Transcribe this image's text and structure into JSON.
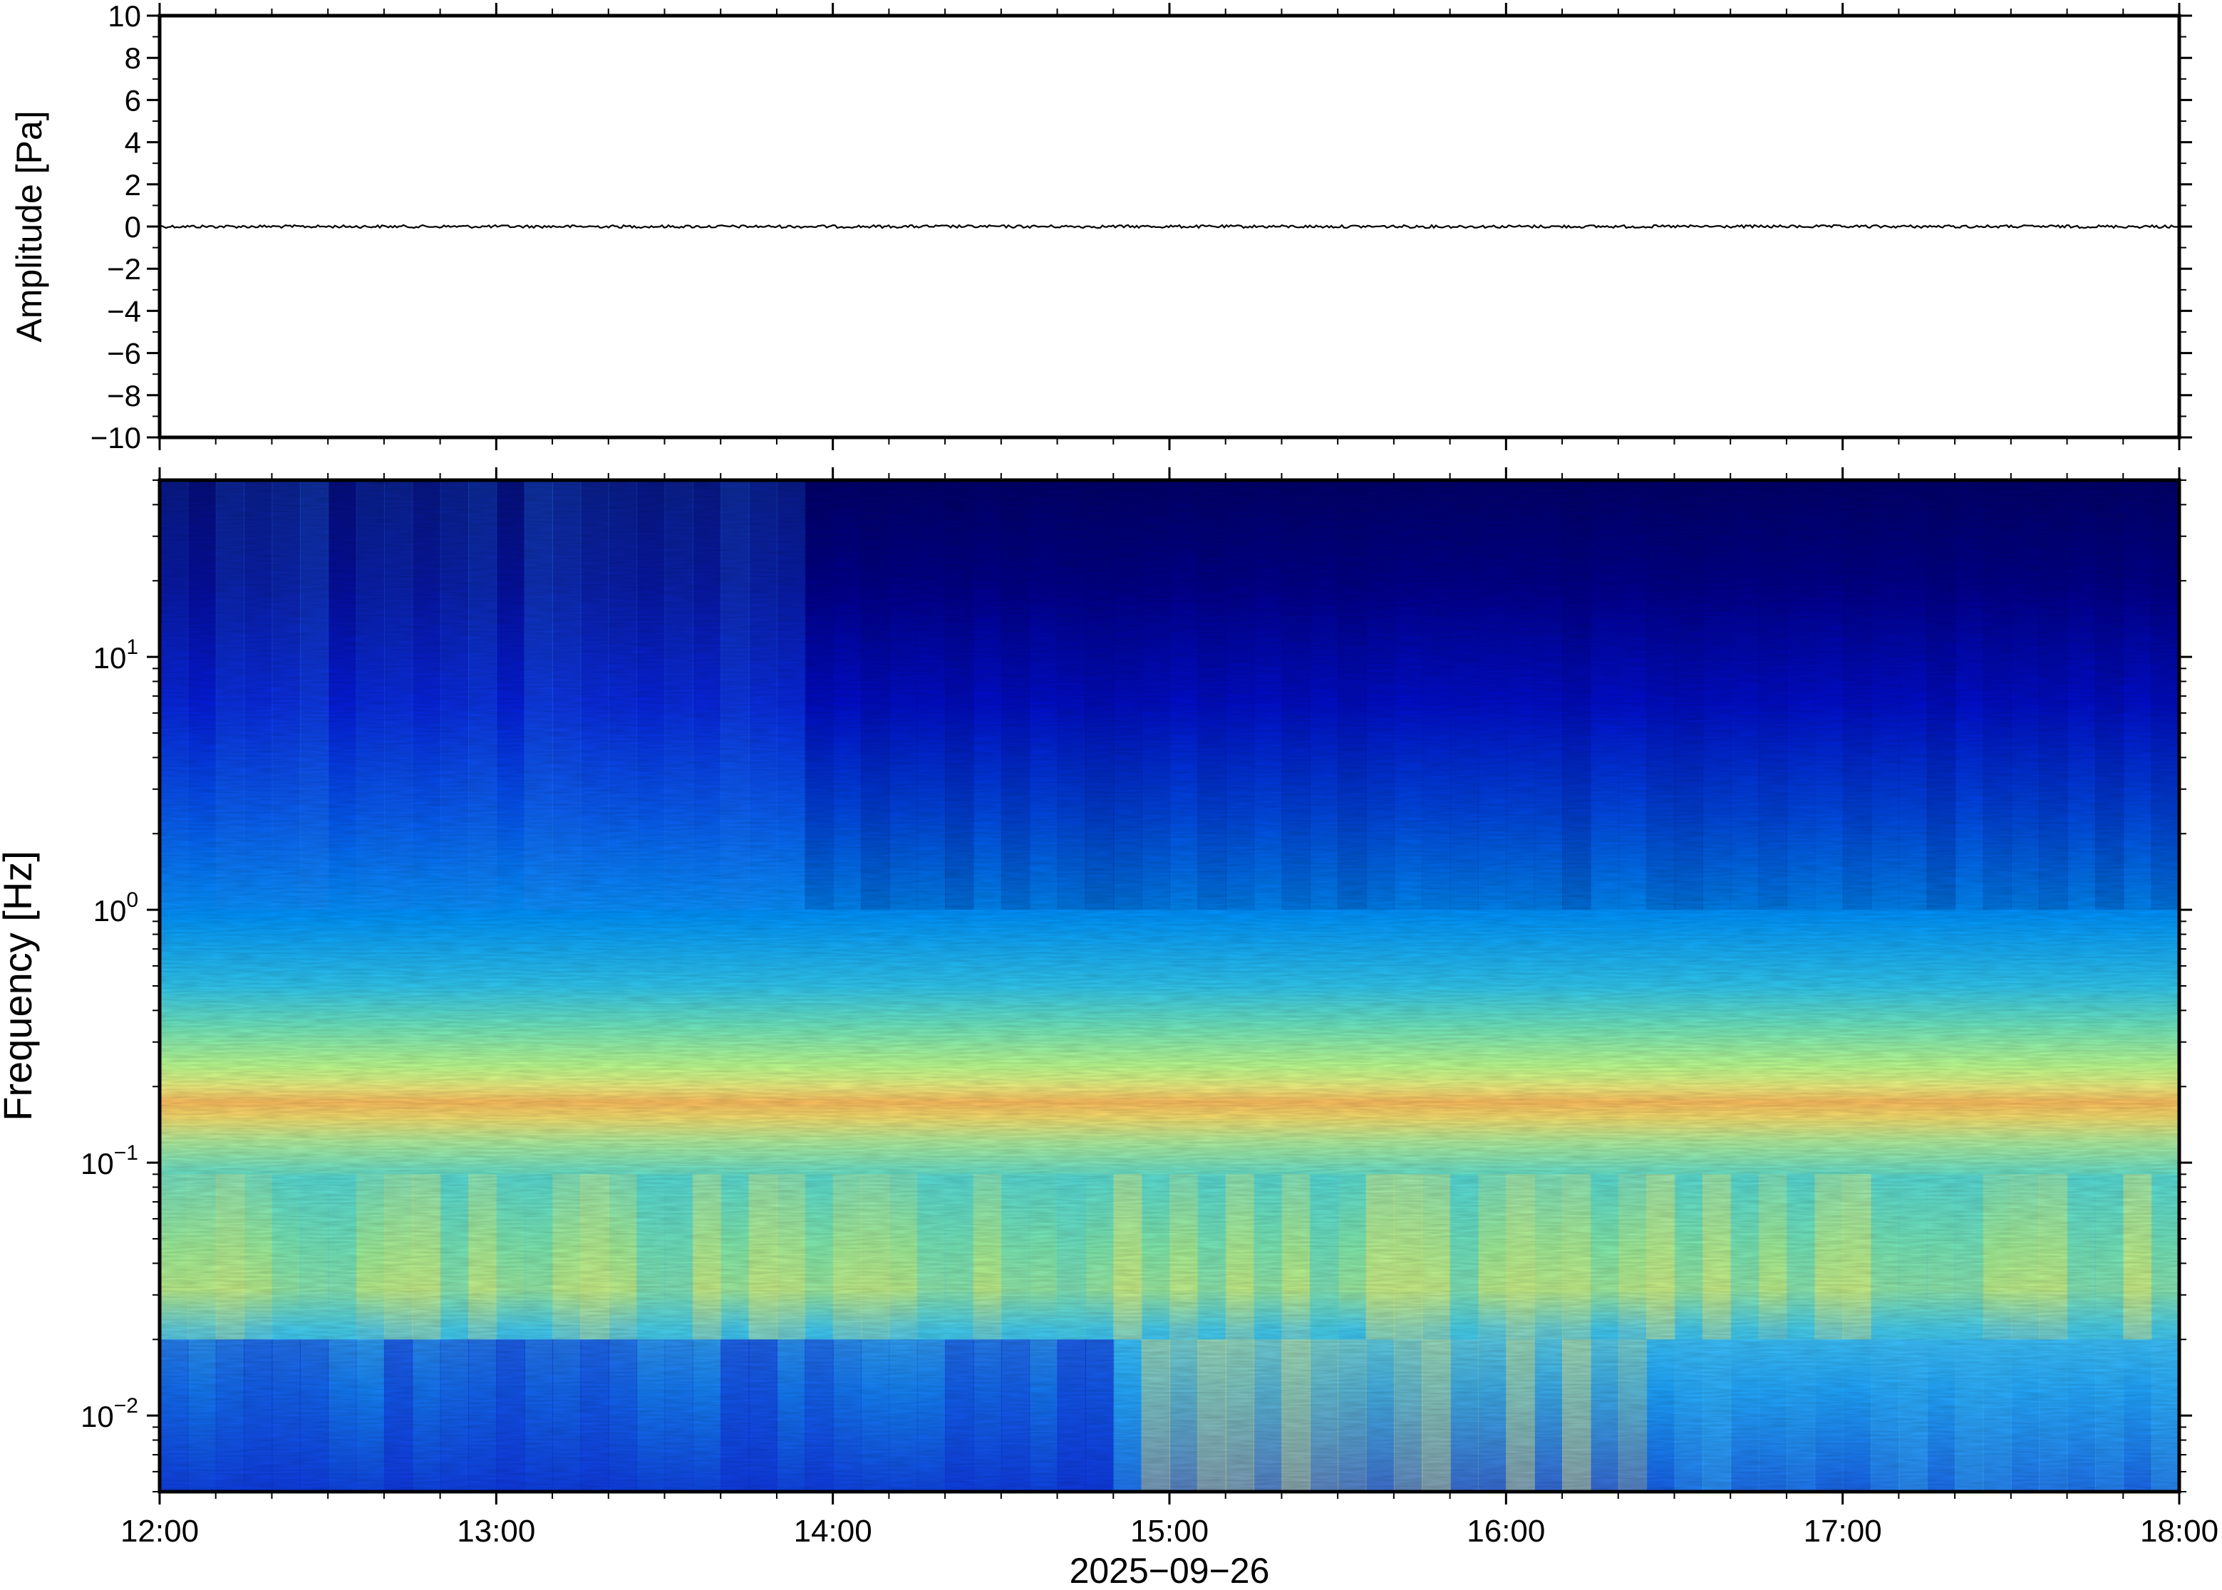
{
  "chart_data": [
    {
      "type": "line",
      "panel": "waveform",
      "ylabel": "Amplitude [Pa]",
      "ylim": [
        -10,
        10
      ],
      "yticks": [
        "10",
        "8",
        "6",
        "4",
        "2",
        "0",
        "−2",
        "−4",
        "−6",
        "−8",
        "−10"
      ],
      "ytick_values": [
        10,
        8,
        6,
        4,
        2,
        0,
        -2,
        -4,
        -6,
        -8,
        -10
      ],
      "xlim": [
        "2025-09-26T12:00",
        "2025-09-26T18:00"
      ],
      "series": [
        {
          "description_values_pa": "near-zero noise trace",
          "x_hours": [
            12.0,
            13.0,
            14.0,
            15.0,
            16.0,
            17.0,
            18.0
          ],
          "values": [
            0,
            0,
            0,
            0,
            0,
            0,
            0
          ],
          "color": "#000000"
        }
      ]
    },
    {
      "type": "heatmap",
      "panel": "spectrogram",
      "ylabel": "Frequency [Hz]",
      "yscale": "log",
      "ylim": [
        0.005,
        50
      ],
      "yticks": [
        {
          "base": "10",
          "exp": "1",
          "value": 10
        },
        {
          "base": "10",
          "exp": "0",
          "value": 1
        },
        {
          "base": "10",
          "exp": "−1",
          "value": 0.1
        },
        {
          "base": "10",
          "exp": "−2",
          "value": 0.01
        }
      ],
      "xlim": [
        "2025-09-26T12:00",
        "2025-09-26T18:00"
      ],
      "xticks": [
        "12:00",
        "13:00",
        "14:00",
        "15:00",
        "16:00",
        "17:00",
        "18:00"
      ],
      "xtick_hours": [
        12,
        13,
        14,
        15,
        16,
        17,
        18
      ],
      "xlabel": "2025−09−26",
      "colormap": "jet",
      "colormap_colors": [
        "#00007f",
        "#0000ff",
        "#0080ff",
        "#00ffff",
        "#80ff80",
        "#ffff00",
        "#ff8000",
        "#ff0000"
      ],
      "dominant_band_hz": 0.18
    }
  ],
  "axis_colors": {
    "frame": "#000000",
    "background": "#ffffff"
  }
}
